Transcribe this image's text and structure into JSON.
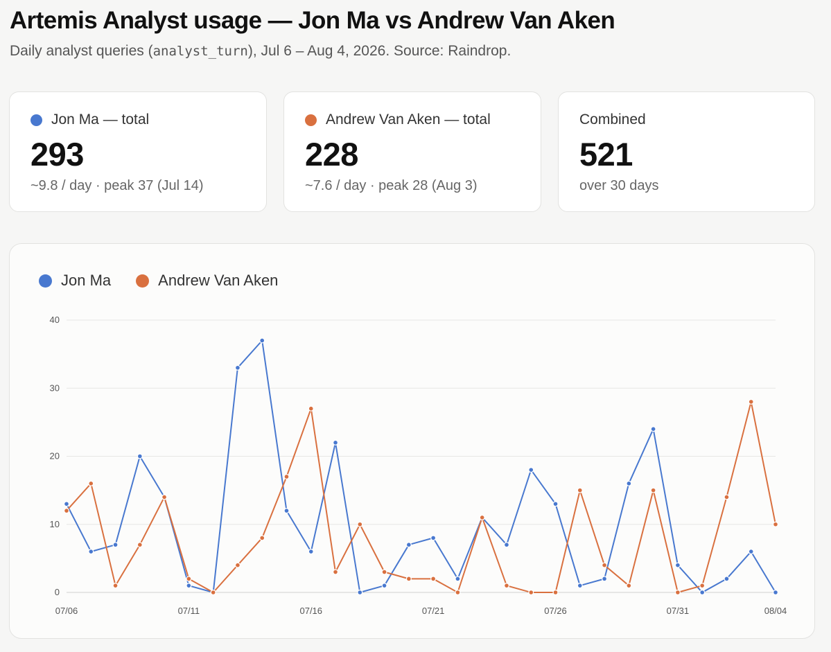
{
  "header": {
    "title": "Artemis Analyst usage — Jon Ma vs Andrew Van Aken",
    "subtitle_pre": "Daily analyst queries (",
    "subtitle_code": "analyst_turn",
    "subtitle_post": "), Jul 6 – Aug 4, 2026. Source: Raindrop."
  },
  "cards": [
    {
      "label": "Jon Ma — total",
      "value": "293",
      "note": "~9.8 / day · peak 37 (Jul 14)",
      "dot_color": "#4878cf"
    },
    {
      "label": "Andrew Van Aken — total",
      "value": "228",
      "note": "~7.6 / day · peak 28 (Aug 3)",
      "dot_color": "#d9703f"
    },
    {
      "label": "Combined",
      "value": "521",
      "note": "over 30 days"
    }
  ],
  "chart_data": {
    "type": "line",
    "x": [
      "07/06",
      "07/07",
      "07/08",
      "07/09",
      "07/10",
      "07/11",
      "07/12",
      "07/13",
      "07/14",
      "07/15",
      "07/16",
      "07/17",
      "07/18",
      "07/19",
      "07/20",
      "07/21",
      "07/22",
      "07/23",
      "07/24",
      "07/25",
      "07/26",
      "07/27",
      "07/28",
      "07/29",
      "07/30",
      "07/31",
      "08/01",
      "08/02",
      "08/03",
      "08/04"
    ],
    "xticks": [
      "07/06",
      "07/11",
      "07/16",
      "07/21",
      "07/26",
      "07/31",
      "08/04"
    ],
    "yticks": [
      "0",
      "10",
      "20",
      "30",
      "40"
    ],
    "ylim": [
      0,
      40
    ],
    "grid": true,
    "legend_position": "top-left",
    "series": [
      {
        "name": "Jon Ma",
        "color": "#4878cf",
        "values": [
          13,
          6,
          7,
          20,
          14,
          1,
          0,
          33,
          37,
          12,
          6,
          22,
          0,
          1,
          7,
          8,
          2,
          11,
          7,
          18,
          13,
          1,
          2,
          16,
          24,
          4,
          0,
          2,
          6,
          0
        ]
      },
      {
        "name": "Andrew Van Aken",
        "color": "#d9703f",
        "values": [
          12,
          16,
          1,
          7,
          14,
          2,
          0,
          4,
          8,
          17,
          27,
          3,
          10,
          3,
          2,
          2,
          0,
          11,
          1,
          0,
          0,
          15,
          4,
          1,
          15,
          0,
          1,
          14,
          28,
          10
        ]
      }
    ]
  }
}
